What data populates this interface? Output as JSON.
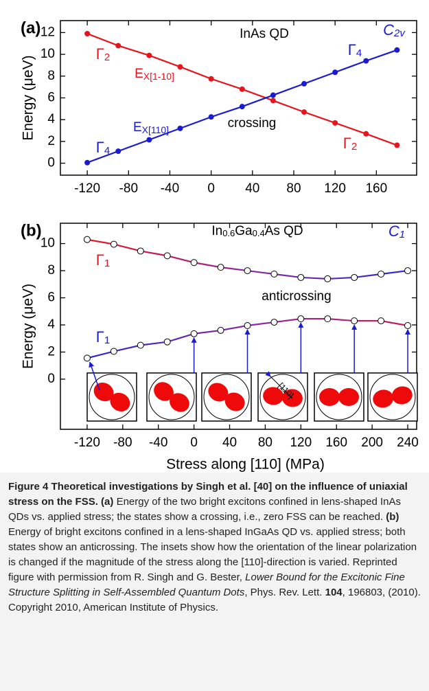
{
  "chart_data": [
    {
      "type": "line",
      "panel_label": "(a)",
      "ylabel": "Energy (μeV)",
      "x": [
        -120,
        -90,
        -60,
        -30,
        0,
        30,
        60,
        90,
        120,
        150,
        180
      ],
      "series": [
        {
          "color": "#e8141c",
          "values": [
            11.9,
            10.8,
            9.9,
            8.85,
            7.75,
            6.8,
            5.75,
            4.7,
            3.7,
            2.7,
            1.65
          ]
        },
        {
          "color": "#1a1ad0",
          "values": [
            0.05,
            1.1,
            2.15,
            3.2,
            4.25,
            5.2,
            6.25,
            7.3,
            8.35,
            9.4,
            10.4
          ]
        }
      ],
      "marker": "dot",
      "xlim": [
        -146,
        199
      ],
      "xticks": [
        -120,
        -80,
        -40,
        0,
        40,
        80,
        120,
        160
      ],
      "ylim": [
        -1.1,
        13.1
      ],
      "yticks": [
        0,
        2,
        4,
        6,
        8,
        10,
        12
      ],
      "annotations": [
        {
          "text": "InAs QD",
          "color": "#000000"
        },
        {
          "text": "C",
          "sub": "2v",
          "color": "#1a1ad0",
          "style": "math"
        },
        {
          "text": "Γ",
          "sub": "2",
          "color": "#e8141c",
          "style": "greek"
        },
        {
          "text": "Γ",
          "sub": "4",
          "color": "#1a1ad0",
          "style": "greek"
        },
        {
          "text": "E",
          "sub": "X[1-10]",
          "color": "#e8141c"
        },
        {
          "text": "E",
          "sub": "X[110]",
          "color": "#1a1ad0"
        },
        {
          "text": "crossing",
          "color": "#000000"
        },
        {
          "text": "Γ",
          "sub": "4",
          "color": "#1a1ad0",
          "style": "greek"
        },
        {
          "text": "Γ",
          "sub": "2",
          "color": "#e8141c",
          "style": "greek"
        }
      ]
    },
    {
      "type": "line",
      "panel_label": "(b)",
      "ylabel": "Energy (μeV)",
      "xlabel": "Stress along [110] (MPa)",
      "x": [
        -120,
        -90,
        -60,
        -30,
        0,
        30,
        60,
        90,
        120,
        150,
        180,
        210,
        240
      ],
      "series": [
        {
          "colors": [
            "#e8141c",
            "#8a2aa0",
            "#2a2ad0"
          ],
          "values": [
            10.3,
            9.95,
            9.45,
            9.1,
            8.6,
            8.25,
            8.0,
            7.75,
            7.5,
            7.4,
            7.5,
            7.75,
            8.0
          ]
        },
        {
          "colors": [
            "#2a2ad0",
            "#8a2aa0",
            "#c0205a"
          ],
          "values": [
            1.55,
            2.05,
            2.5,
            2.75,
            3.35,
            3.6,
            3.95,
            4.2,
            4.45,
            4.45,
            4.3,
            4.3,
            3.95
          ]
        }
      ],
      "marker": "open-circle",
      "xlim": [
        -150,
        250
      ],
      "xticks": [
        -120,
        -80,
        -40,
        0,
        40,
        80,
        120,
        160,
        200,
        240
      ],
      "ylim": [
        -3.7,
        11.5
      ],
      "yticks": [
        0,
        2,
        4,
        6,
        8,
        10
      ],
      "annotations": [
        {
          "parts": [
            "In",
            "0.6",
            "Ga",
            "0.4",
            "As QD"
          ],
          "color": "#000000"
        },
        {
          "text": "C",
          "sub": "1",
          "color": "#1a1ad0",
          "style": "math"
        },
        {
          "text": "Γ",
          "sub": "1",
          "color": "#e8141c",
          "style": "greek"
        },
        {
          "text": "anticrossing",
          "color": "#000000"
        },
        {
          "text": "Γ",
          "sub": "1",
          "color": "#1a1ad0",
          "style": "greek"
        }
      ],
      "insets": {
        "x": [
          -120,
          0,
          60,
          120,
          180,
          240
        ],
        "angle": [
          32,
          35,
          30,
          6,
          0,
          -10
        ],
        "label": "[110]"
      }
    }
  ],
  "caption": {
    "label": "Figure 4",
    "title": "Theoretical investigations by Singh et al. [40] on the influence of uniaxial stress on the FSS.",
    "a": "(a)",
    "text_a": "Energy of the two bright excitons confined in lens-shaped InAs QDs vs. applied stress; the states show a crossing, i.e., zero FSS can be reached.",
    "b": "(b)",
    "text_b": "Energy of bright excitons confined in a lens-shaped InGaAs QD vs. applied stress; both states show an anticrossing. The insets show how the orientation of the linear polarization is changed if the magnitude of the stress along the [110]-direction is varied. Reprinted figure with permission from R. Singh and G. Bester,",
    "ref_title": "Lower Bound for the Excitonic Fine Structure Splitting in Self-Assembled Quantum Dots",
    "journal": ", Phys. Rev. Lett.",
    "volume": "104",
    "rest": ", 196803, (2010). Copyright 2010, American Institute of Physics."
  }
}
